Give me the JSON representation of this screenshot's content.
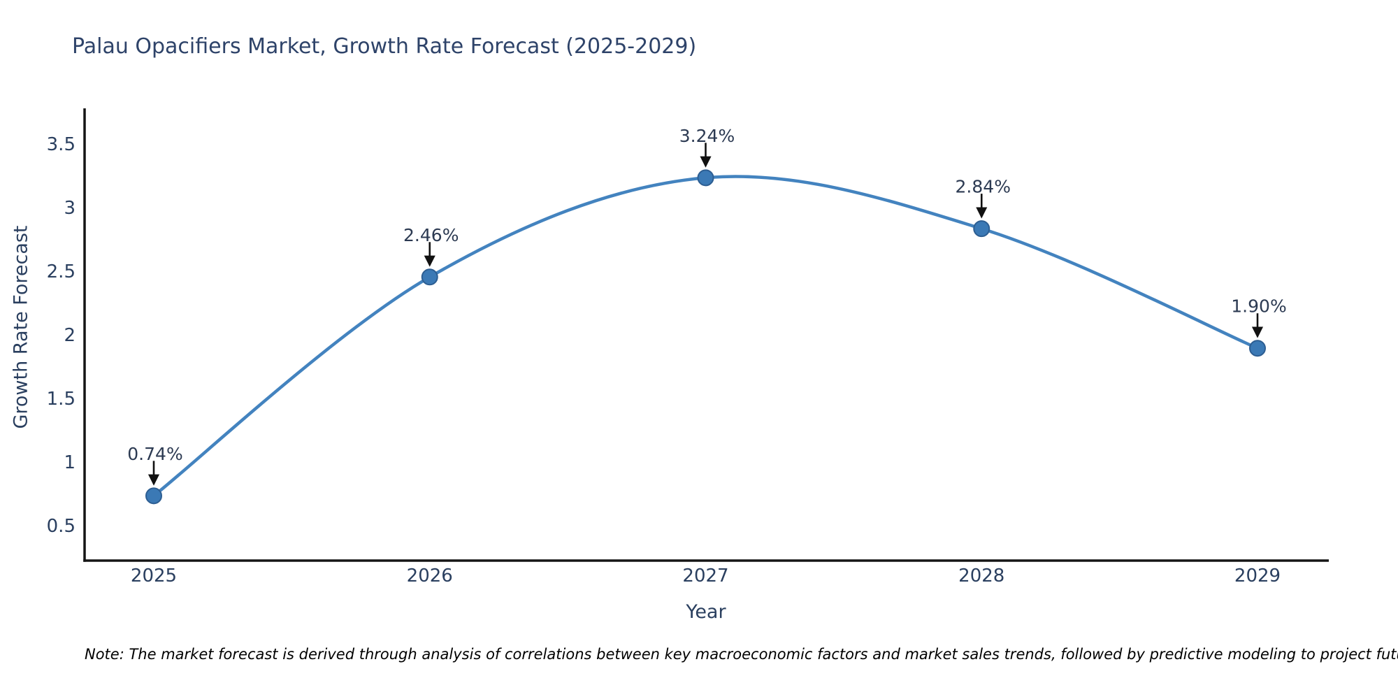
{
  "title": "Palau Opacifiers Market, Growth Rate Forecast (2025-2029)",
  "note": "Note: The market forecast is derived through analysis of correlations between key macroeconomic factors and market sales trends, followed by predictive modeling to project future sales",
  "chart_data": {
    "type": "line",
    "line_shape": "spline",
    "title": "Palau Opacifiers Market, Growth Rate Forecast (2025-2029)",
    "xlabel": "Year",
    "ylabel": "Growth Rate Forecast",
    "x": [
      2025,
      2026,
      2027,
      2028,
      2029
    ],
    "y": [
      0.74,
      2.46,
      3.24,
      2.84,
      1.9
    ],
    "point_labels": [
      "0.74%",
      "2.46%",
      "3.24%",
      "2.84%",
      "1.90%"
    ],
    "yticks": [
      3.5,
      3,
      2.5,
      2,
      1.5,
      1,
      0.5
    ],
    "ylim": [
      0.24,
      3.77
    ],
    "grid": false,
    "legend_position": "none",
    "colors": {
      "line": "#4383bf",
      "marker_fill": "#3b79b5",
      "marker_edge": "#2d5e92",
      "axis_line": "#151515",
      "tick_text": "#2a3f5f",
      "title_text": "#2e4369",
      "annotation_text": "#2c3a52",
      "arrow": "#111111",
      "note_text": "#000000"
    }
  }
}
